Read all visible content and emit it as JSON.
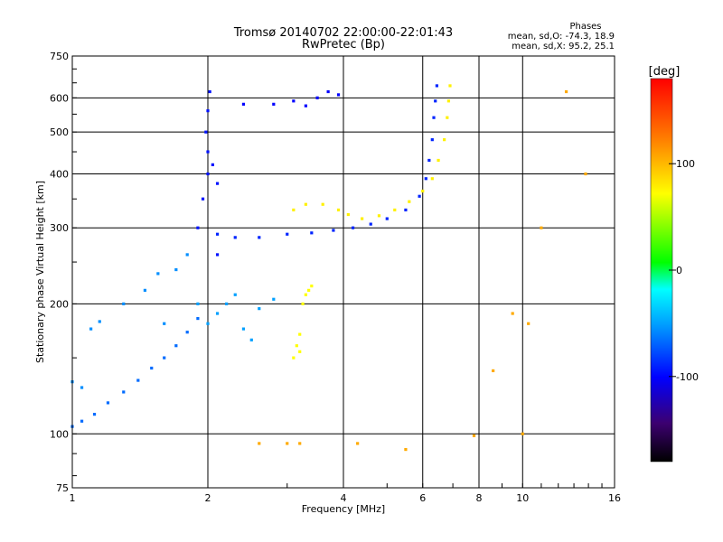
{
  "chart_data": {
    "type": "scatter",
    "title": "Tromsø 20140702 22:00:00-22:01:43",
    "subtitle": "RwPretec (Bp)",
    "xlabel": "Frequency [MHz]",
    "ylabel": "Stationary phase Virtual Height [km]",
    "x_scale": "log",
    "y_scale": "log",
    "xlim": [
      1,
      16
    ],
    "ylim": [
      75,
      750
    ],
    "x_ticks": [
      1,
      2,
      4,
      6,
      8,
      10,
      16
    ],
    "x_tick_labels": [
      "1",
      "2",
      "4",
      "6",
      "8",
      "10",
      "16"
    ],
    "y_ticks": [
      75,
      100,
      200,
      300,
      400,
      500,
      600,
      750
    ],
    "y_tick_labels": [
      "75",
      "100",
      "200",
      "300",
      "400",
      "500",
      "600",
      "750"
    ],
    "x_gridlines": [
      2,
      4,
      6,
      8,
      10
    ],
    "y_gridlines": [
      100,
      200,
      300,
      400,
      500,
      600
    ],
    "grid": true,
    "stats": {
      "heading": "Phases",
      "line_o": "mean, sd,O: -74.3, 18.9",
      "line_x": "mean, sd,X:  95.2, 25.1"
    },
    "colorbar": {
      "label": "[deg]",
      "min": -180,
      "max": 180,
      "ticks": [
        100,
        0,
        -100
      ],
      "tick_labels": [
        "100",
        "0",
        "-100"
      ],
      "colormap": [
        "#000000",
        "#3c0070",
        "#0000ff",
        "#00a0ff",
        "#00ffff",
        "#00ff00",
        "#ffff00",
        "#ff8000",
        "#ff0000"
      ]
    },
    "series": [
      {
        "trace": "low_freq_trace",
        "phase": -60,
        "points": [
          [
            1.0,
            104
          ],
          [
            1.05,
            107
          ],
          [
            1.12,
            111
          ],
          [
            1.2,
            118
          ],
          [
            1.3,
            125
          ],
          [
            1.4,
            133
          ],
          [
            1.5,
            142
          ],
          [
            1.6,
            150
          ],
          [
            1.7,
            160
          ],
          [
            1.8,
            172
          ],
          [
            1.9,
            185
          ]
        ]
      },
      {
        "trace": "low_freq_scatter",
        "phase": -50,
        "points": [
          [
            1.0,
            132
          ],
          [
            1.05,
            128
          ],
          [
            1.1,
            175
          ],
          [
            1.15,
            182
          ],
          [
            1.3,
            200
          ],
          [
            1.45,
            215
          ],
          [
            1.55,
            235
          ],
          [
            1.6,
            180
          ],
          [
            1.7,
            240
          ],
          [
            1.8,
            260
          ]
        ]
      },
      {
        "trace": "f1_column",
        "phase": -85,
        "points": [
          [
            1.9,
            300
          ],
          [
            1.95,
            350
          ],
          [
            2.0,
            400
          ],
          [
            2.0,
            450
          ],
          [
            1.98,
            500
          ],
          [
            2.0,
            560
          ],
          [
            2.02,
            620
          ],
          [
            2.05,
            420
          ],
          [
            2.1,
            380
          ],
          [
            2.1,
            260
          ]
        ]
      },
      {
        "trace": "lower_cluster",
        "phase": -45,
        "points": [
          [
            1.9,
            200
          ],
          [
            2.0,
            180
          ],
          [
            2.1,
            190
          ],
          [
            2.2,
            200
          ],
          [
            2.3,
            210
          ],
          [
            2.4,
            175
          ],
          [
            2.5,
            165
          ],
          [
            2.6,
            195
          ],
          [
            2.8,
            205
          ]
        ]
      },
      {
        "trace": "f2_o_trace",
        "phase": -80,
        "points": [
          [
            2.1,
            290
          ],
          [
            2.3,
            285
          ],
          [
            2.6,
            285
          ],
          [
            3.0,
            290
          ],
          [
            3.4,
            292
          ],
          [
            3.8,
            296
          ],
          [
            4.2,
            300
          ],
          [
            4.6,
            306
          ],
          [
            5.0,
            315
          ],
          [
            5.5,
            330
          ],
          [
            5.9,
            355
          ],
          [
            6.1,
            390
          ],
          [
            6.2,
            430
          ],
          [
            6.3,
            480
          ],
          [
            6.35,
            540
          ],
          [
            6.4,
            590
          ],
          [
            6.45,
            640
          ]
        ]
      },
      {
        "trace": "f2_x_trace",
        "phase": 95,
        "points": [
          [
            3.1,
            330
          ],
          [
            3.3,
            340
          ],
          [
            3.6,
            340
          ],
          [
            3.9,
            330
          ],
          [
            4.1,
            322
          ],
          [
            4.4,
            315
          ],
          [
            4.8,
            320
          ],
          [
            5.2,
            330
          ],
          [
            5.6,
            345
          ],
          [
            6.0,
            365
          ],
          [
            6.3,
            390
          ],
          [
            6.5,
            430
          ],
          [
            6.7,
            480
          ],
          [
            6.8,
            540
          ],
          [
            6.85,
            590
          ],
          [
            6.9,
            640
          ]
        ]
      },
      {
        "trace": "upper_track",
        "phase": -90,
        "points": [
          [
            2.4,
            580
          ],
          [
            2.8,
            580
          ],
          [
            3.1,
            590
          ],
          [
            3.3,
            575
          ],
          [
            3.5,
            600
          ],
          [
            3.7,
            620
          ],
          [
            3.9,
            610
          ]
        ]
      },
      {
        "trace": "e_layer_x",
        "phase": 90,
        "points": [
          [
            3.1,
            150
          ],
          [
            3.15,
            160
          ],
          [
            3.2,
            170
          ],
          [
            3.2,
            155
          ],
          [
            3.25,
            200
          ],
          [
            3.3,
            210
          ],
          [
            3.35,
            215
          ],
          [
            3.4,
            220
          ]
        ]
      },
      {
        "trace": "sparse_noise",
        "phase": 120,
        "points": [
          [
            3.0,
            95
          ],
          [
            3.2,
            95
          ],
          [
            2.6,
            95
          ],
          [
            4.3,
            95
          ],
          [
            5.5,
            92
          ],
          [
            7.8,
            99
          ],
          [
            8.6,
            140
          ],
          [
            9.5,
            190
          ],
          [
            10.0,
            100
          ],
          [
            10.3,
            180
          ],
          [
            11.0,
            300
          ],
          [
            12.5,
            620
          ],
          [
            13.8,
            400
          ]
        ]
      }
    ]
  }
}
